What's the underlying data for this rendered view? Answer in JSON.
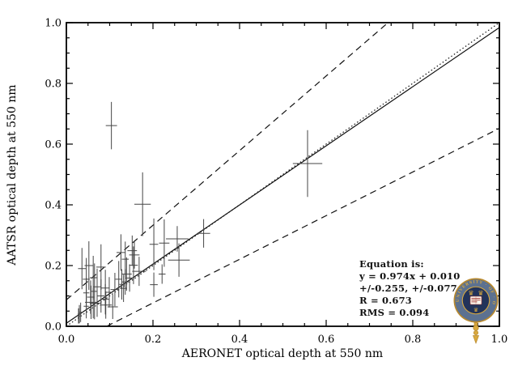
{
  "figure": {
    "background": "#ffffff"
  },
  "chart_data": {
    "type": "scatter",
    "title": "",
    "xlabel": "AERONET optical depth at 550 nm",
    "ylabel": "AATSR optical depth at 550 nm",
    "xlim": [
      0.0,
      1.0
    ],
    "ylim": [
      0.0,
      1.0
    ],
    "xticks": [
      "0.0",
      "0.2",
      "0.4",
      "0.6",
      "0.8",
      "1.0"
    ],
    "yticks": [
      "0.0",
      "0.2",
      "0.4",
      "0.6",
      "0.8",
      "1.0"
    ],
    "minor_tick_interval": 0.05,
    "grid": false,
    "legend": "none",
    "lines": [
      {
        "name": "fit-line",
        "style": "solid",
        "slope": 0.974,
        "intercept": 0.01
      },
      {
        "name": "one-to-one-line",
        "style": "dotted",
        "slope": 1.0,
        "intercept": 0.0
      },
      {
        "name": "upper-uncertainty-line",
        "style": "dashed",
        "slope": 1.229,
        "intercept": 0.087
      },
      {
        "name": "lower-uncertainty-line",
        "style": "dashed",
        "slope": 0.719,
        "intercept": -0.067
      }
    ],
    "points": [
      {
        "x": 0.104,
        "y": 0.661,
        "ex": 0.013,
        "ey": 0.078
      },
      {
        "x": 0.176,
        "y": 0.402,
        "ex": 0.019,
        "ey": 0.105
      },
      {
        "x": 0.557,
        "y": 0.536,
        "ex": 0.034,
        "ey": 0.11
      },
      {
        "x": 0.317,
        "y": 0.306,
        "ex": 0.015,
        "ey": 0.047
      },
      {
        "x": 0.256,
        "y": 0.288,
        "ex": 0.026,
        "ey": 0.042
      },
      {
        "x": 0.226,
        "y": 0.274,
        "ex": 0.012,
        "ey": 0.078
      },
      {
        "x": 0.202,
        "y": 0.27,
        "ex": 0.01,
        "ey": 0.085
      },
      {
        "x": 0.26,
        "y": 0.218,
        "ex": 0.025,
        "ey": 0.055
      },
      {
        "x": 0.202,
        "y": 0.137,
        "ex": 0.009,
        "ey": 0.04
      },
      {
        "x": 0.221,
        "y": 0.172,
        "ex": 0.008,
        "ey": 0.032
      },
      {
        "x": 0.136,
        "y": 0.221,
        "ex": 0.008,
        "ey": 0.058
      },
      {
        "x": 0.152,
        "y": 0.249,
        "ex": 0.011,
        "ey": 0.05
      },
      {
        "x": 0.157,
        "y": 0.235,
        "ex": 0.012,
        "ey": 0.045
      },
      {
        "x": 0.168,
        "y": 0.181,
        "ex": 0.016,
        "ey": 0.048
      },
      {
        "x": 0.146,
        "y": 0.159,
        "ex": 0.01,
        "ey": 0.045
      },
      {
        "x": 0.136,
        "y": 0.146,
        "ex": 0.008,
        "ey": 0.042
      },
      {
        "x": 0.128,
        "y": 0.138,
        "ex": 0.006,
        "ey": 0.05
      },
      {
        "x": 0.155,
        "y": 0.201,
        "ex": 0.01,
        "ey": 0.062
      },
      {
        "x": 0.126,
        "y": 0.243,
        "ex": 0.01,
        "ey": 0.06
      },
      {
        "x": 0.139,
        "y": 0.172,
        "ex": 0.012,
        "ey": 0.055
      },
      {
        "x": 0.132,
        "y": 0.125,
        "ex": 0.008,
        "ey": 0.045
      },
      {
        "x": 0.036,
        "y": 0.19,
        "ex": 0.009,
        "ey": 0.068
      },
      {
        "x": 0.052,
        "y": 0.2,
        "ex": 0.01,
        "ey": 0.08
      },
      {
        "x": 0.08,
        "y": 0.195,
        "ex": 0.011,
        "ey": 0.075
      },
      {
        "x": 0.046,
        "y": 0.155,
        "ex": 0.008,
        "ey": 0.07
      },
      {
        "x": 0.062,
        "y": 0.16,
        "ex": 0.008,
        "ey": 0.072
      },
      {
        "x": 0.071,
        "y": 0.13,
        "ex": 0.009,
        "ey": 0.06
      },
      {
        "x": 0.09,
        "y": 0.126,
        "ex": 0.01,
        "ey": 0.06
      },
      {
        "x": 0.046,
        "y": 0.11,
        "ex": 0.007,
        "ey": 0.05
      },
      {
        "x": 0.056,
        "y": 0.096,
        "ex": 0.008,
        "ey": 0.055
      },
      {
        "x": 0.062,
        "y": 0.076,
        "ex": 0.008,
        "ey": 0.05
      },
      {
        "x": 0.057,
        "y": 0.079,
        "ex": 0.014,
        "ey": 0.055
      },
      {
        "x": 0.091,
        "y": 0.07,
        "ex": 0.014,
        "ey": 0.045
      },
      {
        "x": 0.107,
        "y": 0.064,
        "ex": 0.012,
        "ey": 0.04
      },
      {
        "x": 0.03,
        "y": 0.04,
        "ex": 0.004,
        "ey": 0.03
      },
      {
        "x": 0.028,
        "y": 0.034,
        "ex": 0.004,
        "ey": 0.025
      },
      {
        "x": 0.033,
        "y": 0.046,
        "ex": 0.005,
        "ey": 0.032
      },
      {
        "x": 0.071,
        "y": 0.076,
        "ex": 0.01,
        "ey": 0.045
      },
      {
        "x": 0.08,
        "y": 0.1,
        "ex": 0.008,
        "ey": 0.055
      },
      {
        "x": 0.099,
        "y": 0.112,
        "ex": 0.008,
        "ey": 0.05
      },
      {
        "x": 0.112,
        "y": 0.121,
        "ex": 0.01,
        "ey": 0.055
      },
      {
        "x": 0.121,
        "y": 0.155,
        "ex": 0.008,
        "ey": 0.06
      },
      {
        "x": 0.046,
        "y": 0.066,
        "ex": 0.006,
        "ey": 0.04
      },
      {
        "x": 0.09,
        "y": 0.089,
        "ex": 0.009,
        "ey": 0.05
      },
      {
        "x": 0.065,
        "y": 0.115,
        "ex": 0.007,
        "ey": 0.092
      }
    ],
    "colors": {
      "axis": "#000000",
      "points": "#454545",
      "lines": "#111111"
    }
  },
  "annotation": {
    "lines": [
      "Equation is:",
      "y = 0.974x + 0.010",
      "+/-0.255, +/-0.077",
      "R = 0.673",
      "RMS = 0.094"
    ]
  },
  "logo": {
    "ring_text": "UNIVERSITY · OF · OXFORD",
    "crown_glyph": "♛",
    "colors": {
      "ring": "#5c7190",
      "gold": "#d9a93e",
      "outline": "#b8892e",
      "navy": "#22335a",
      "book": "#f7f4ec",
      "booktext": "#a93a33"
    }
  }
}
